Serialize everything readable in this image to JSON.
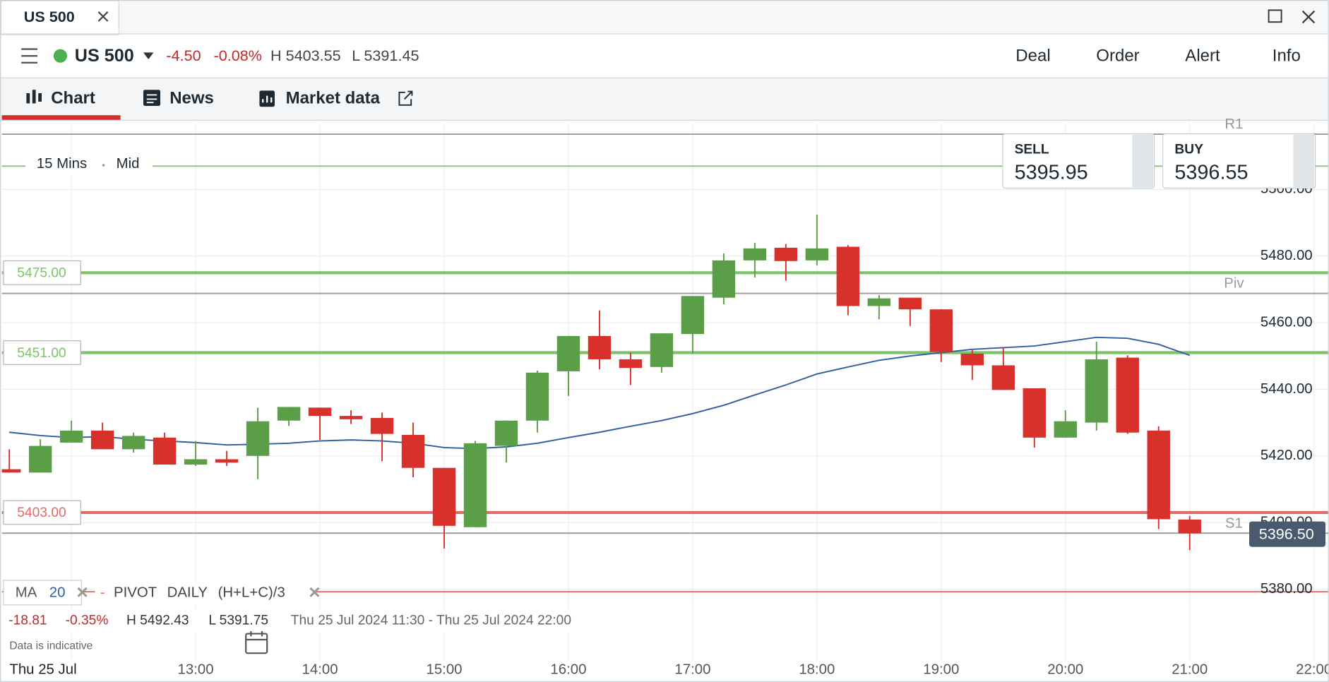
{
  "window": {
    "tab": "US 500"
  },
  "toolbar": {
    "symbol": "US 500",
    "change": "-4.50",
    "change_pct": "-0.08%",
    "high": "H 5403.55",
    "low": "L 5391.45",
    "actions": [
      "Deal",
      "Order",
      "Alert",
      "Info"
    ]
  },
  "tabs": [
    "Chart",
    "News",
    "Market data"
  ],
  "quote": {
    "sell_label": "SELL",
    "sell": "5395.95",
    "buy_label": "BUY",
    "buy": "5396.55"
  },
  "chart_data": {
    "type": "candlestick",
    "interval": "15 Mins",
    "price_type": "Mid",
    "x": [
      11.5,
      11.75,
      12,
      12.25,
      12.5,
      12.75,
      13,
      13.25,
      13.5,
      13.75,
      14,
      14.25,
      14.5,
      14.75,
      15,
      15.25,
      15.5,
      15.75,
      16,
      16.25,
      16.5,
      16.75,
      17,
      17.25,
      17.5,
      17.75,
      18,
      18.25,
      18.5,
      18.75,
      19,
      19.25,
      19.5,
      19.75,
      20,
      20.25,
      20.5,
      20.75,
      21
    ],
    "open": [
      5416,
      5415,
      5424,
      5427.6,
      5422,
      5425.5,
      5417.4,
      5419,
      5420,
      5430.6,
      5434.5,
      5432,
      5431.4,
      5426.3,
      5416.4,
      5398.6,
      5423,
      5430.6,
      5445.4,
      5456,
      5449,
      5446.7,
      5456.6,
      5467.5,
      5478.7,
      5482.5,
      5478.7,
      5482.8,
      5465,
      5467.5,
      5464,
      5450.7,
      5447.2,
      5440.3,
      5425.5,
      5430,
      5449.5,
      5427.6,
      5400.9
    ],
    "high": [
      5422,
      5425,
      5430.6,
      5430,
      5427,
      5427,
      5424.5,
      5421.5,
      5434.5,
      5434.7,
      5434.5,
      5433.7,
      5433,
      5430,
      5416.4,
      5424.5,
      5430.6,
      5445.6,
      5456,
      5463.7,
      5451,
      5456.8,
      5468,
      5480.8,
      5484,
      5483.6,
      5492.43,
      5483.3,
      5468.3,
      5467.5,
      5464,
      5451.8,
      5452.5,
      5440.3,
      5433.7,
      5454.3,
      5450.2,
      5428.9,
      5402
    ],
    "low": [
      5415,
      5415,
      5424,
      5422,
      5421,
      5417.4,
      5417,
      5417,
      5413,
      5429,
      5424.8,
      5429.6,
      5418.4,
      5413.6,
      5392.2,
      5398.6,
      5418,
      5427,
      5438,
      5446,
      5441.3,
      5445,
      5450.7,
      5465.5,
      5473.6,
      5472.6,
      5477.2,
      5462.2,
      5461,
      5459,
      5448.2,
      5442.8,
      5439.8,
      5422.5,
      5425.5,
      5427.6,
      5426.6,
      5398,
      5391.75
    ],
    "close": [
      5415,
      5423,
      5427.6,
      5422,
      5426,
      5417.4,
      5419,
      5418,
      5430.4,
      5434.7,
      5432,
      5431,
      5426.6,
      5416.4,
      5399,
      5423.8,
      5430.6,
      5445,
      5456,
      5449,
      5446.4,
      5456.8,
      5468,
      5478.7,
      5482.3,
      5478.5,
      5482.3,
      5465,
      5467.3,
      5464,
      5451.2,
      5447.2,
      5439.8,
      5425.5,
      5430.4,
      5449,
      5427,
      5401,
      5396.8
    ],
    "up_color": "#5a9e47",
    "down_color": "#d8312b",
    "ma": {
      "label": "MA",
      "period": 20,
      "color": "#2f5f9e",
      "values": [
        5427.1,
        5426.1,
        5425.5,
        5425.8,
        5425.0,
        5424.5,
        5424.0,
        5423.3,
        5423.5,
        5423.8,
        5424.5,
        5424.8,
        5424.5,
        5423.8,
        5422.5,
        5422.2,
        5422.7,
        5423.8,
        5425.5,
        5427.1,
        5428.9,
        5430.6,
        5432.7,
        5435.2,
        5438.3,
        5441.3,
        5444.6,
        5446.7,
        5448.7,
        5450,
        5451,
        5452,
        5452.5,
        5453,
        5454.3,
        5455.6,
        5455.3,
        5453.5,
        5450.2
      ]
    },
    "pivot": {
      "label": "PIVOT",
      "period": "DAILY",
      "formula": "(H+L+C)/3"
    },
    "levels": [
      {
        "value": 5516.6,
        "label": "R1",
        "color": "#9a9a9a"
      },
      {
        "value": 5507,
        "color": "#8dc07a"
      },
      {
        "value": 5475,
        "label": "5475.00",
        "color": "#7cc36a"
      },
      {
        "value": 5468.8,
        "label": "Piv",
        "color": "#9a9a9a"
      },
      {
        "value": 5451,
        "label": "5451.00",
        "color": "#7cc36a"
      },
      {
        "value": 5403,
        "label": "5403.00",
        "color": "#e06a66"
      },
      {
        "value": 5396.8,
        "label": "S1",
        "color": "#9a9a9a"
      },
      {
        "value": 5379.2,
        "color": "#e06a66"
      }
    ],
    "last_price": {
      "value": 5396.5,
      "label": "5396.50"
    },
    "xlim": [
      11.44,
      22.12
    ],
    "xticks": [
      {
        "value": 12,
        "label": null
      },
      {
        "value": 13,
        "label": "13:00"
      },
      {
        "value": 14,
        "label": "14:00"
      },
      {
        "value": 15,
        "label": "15:00"
      },
      {
        "value": 16,
        "label": "16:00"
      },
      {
        "value": 17,
        "label": "17:00"
      },
      {
        "value": 18,
        "label": "18:00"
      },
      {
        "value": 19,
        "label": "19:00"
      },
      {
        "value": 20,
        "label": "20:00"
      },
      {
        "value": 21,
        "label": "21:00"
      },
      {
        "value": 22,
        "label": "22:00"
      }
    ],
    "ylim": [
      5360,
      5520
    ],
    "yticks": [
      {
        "value": 5380,
        "label": "5380.00"
      },
      {
        "value": 5400,
        "label": "5400.00"
      },
      {
        "value": 5420,
        "label": "5420.00"
      },
      {
        "value": 5440,
        "label": "5440.00"
      },
      {
        "value": 5460,
        "label": "5460.00"
      },
      {
        "value": 5480,
        "label": "5480.00"
      },
      {
        "value": 5500,
        "label": "5500.00"
      }
    ],
    "grid": true,
    "stats": {
      "change": "-18.81",
      "change_pct": "-0.35%",
      "high": "H 5492.43",
      "low": "L 5391.75",
      "range": "Thu 25 Jul 2024 11:30 - Thu 25 Jul 2024 22:00",
      "note": "Data is indicative",
      "date": "Thu 25 Jul"
    }
  }
}
